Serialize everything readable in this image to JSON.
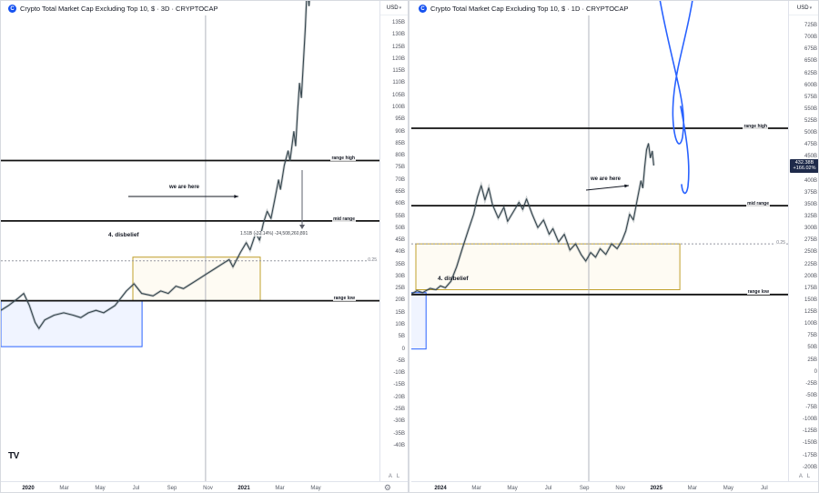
{
  "colors": {
    "background": "#ffffff",
    "border": "#e0e3eb",
    "text": "#131722",
    "muted": "#787b86",
    "level_line": "#111111",
    "fib_line": "#9598a1",
    "series": "#37474f",
    "box_accumulation": "#c0a02b",
    "box_capitulation": "#2962ff",
    "projection": "#2962ff",
    "badge_bg": "#1e2a4a",
    "badge_text": "#ffffff",
    "symbol_logo_bg": "#1652f0",
    "annotation": "#131722"
  },
  "footer": {
    "logo_text": "TV"
  },
  "panes": [
    {
      "title": "Crypto Total Market Cap Excluding Top 10, $ · 3D · CRYPTOCAP",
      "logo_letter": "C",
      "currency": "USD",
      "toggles": {
        "auto": "A",
        "log": "L"
      },
      "labels": {
        "range_high": "range high",
        "mid_range": "mid range",
        "range_low": "range low",
        "fib": "0.25",
        "disbelief": "4. disbelief",
        "we_are_here": "we are here",
        "measure": "1.51B (-32.14%) -24,508,260,891"
      },
      "price_ticks": [
        "135B",
        "130B",
        "125B",
        "120B",
        "115B",
        "110B",
        "105B",
        "100B",
        "95B",
        "90B",
        "85B",
        "80B",
        "75B",
        "70B",
        "65B",
        "60B",
        "55B",
        "50B",
        "45B",
        "40B",
        "35B",
        "30B",
        "25B",
        "20B",
        "15B",
        "10B",
        "5B",
        "0",
        "-5B",
        "-10B",
        "-15B",
        "-20B",
        "-25B",
        "-30B",
        "-35B",
        "-40B"
      ],
      "time_ticks": [
        "2020",
        "Mar",
        "May",
        "Jul",
        "Sep",
        "Nov",
        "2021",
        "Mar",
        "May"
      ]
    },
    {
      "title": "Crypto Total Market Cap Excluding Top 10, $ · 1D · CRYPTOCAP",
      "logo_letter": "C",
      "currency": "USD",
      "toggles": {
        "auto": "A",
        "log": "L"
      },
      "badge": {
        "price": "432.38B",
        "change": "+166.02%"
      },
      "labels": {
        "range_high": "range high",
        "mid_range": "mid range",
        "range_low": "range low",
        "fib": "0.25",
        "disbelief": "4. disbelief",
        "we_are_here": "we are here"
      },
      "price_ticks": [
        "725B",
        "700B",
        "675B",
        "650B",
        "625B",
        "600B",
        "575B",
        "550B",
        "525B",
        "500B",
        "475B",
        "450B",
        "425B",
        "400B",
        "375B",
        "350B",
        "325B",
        "300B",
        "275B",
        "250B",
        "225B",
        "200B",
        "175B",
        "150B",
        "125B",
        "100B",
        "75B",
        "50B",
        "25B",
        "0",
        "-25B",
        "-50B",
        "-75B",
        "-100B",
        "-125B",
        "-150B",
        "-175B",
        "-200B"
      ],
      "time_ticks": [
        "2024",
        "Mar",
        "May",
        "Jul",
        "Sep",
        "Nov",
        "2025",
        "Mar",
        "May",
        "Jul"
      ]
    }
  ],
  "chart_data": [
    {
      "type": "line",
      "note": "candlestick price chart approximated as line series",
      "title": "Crypto Total Market Cap Excluding Top 10, $ - 3D - CRYPTOCAP",
      "timeframe": "3D",
      "x_axis": {
        "start": "Dec 2019",
        "end": "Jun 2021",
        "ticks": [
          "2020",
          "Mar",
          "May",
          "Jul",
          "Sep",
          "Nov",
          "2021",
          "Mar",
          "May"
        ]
      },
      "y_axis": {
        "unit": "USD billions",
        "top": 135,
        "bottom": -40,
        "step": 5
      },
      "levels": {
        "range_high": 78,
        "mid_range": 53,
        "range_low": 20,
        "fib_0_25": 36.5
      },
      "boxes": {
        "accumulation": {
          "x0": 0.347,
          "x1": 0.682,
          "top": 38,
          "bottom": 20
        },
        "capitulation": {
          "x0": 0.0,
          "x1": 0.371,
          "top": 20,
          "bottom": 1
        }
      },
      "vline_x": 0.538,
      "series": {
        "x": [
          0.0,
          0.02,
          0.045,
          0.06,
          0.075,
          0.09,
          0.1,
          0.115,
          0.14,
          0.165,
          0.19,
          0.21,
          0.23,
          0.25,
          0.27,
          0.3,
          0.33,
          0.35,
          0.37,
          0.4,
          0.42,
          0.44,
          0.46,
          0.48,
          0.5,
          0.52,
          0.54,
          0.56,
          0.58,
          0.6,
          0.61,
          0.63,
          0.645,
          0.655,
          0.67,
          0.68,
          0.69,
          0.7,
          0.71,
          0.72,
          0.73,
          0.735,
          0.745,
          0.755,
          0.76,
          0.77,
          0.775,
          0.78,
          0.785,
          0.79,
          0.795,
          0.8,
          0.805,
          0.81,
          0.815
        ],
        "values_billions": [
          16,
          18,
          21,
          23,
          18,
          11,
          8.5,
          12,
          14,
          15,
          14,
          13,
          15,
          16,
          15,
          18,
          24,
          27,
          23,
          22,
          24,
          23,
          26,
          25,
          27,
          29,
          31,
          33,
          35,
          37,
          34,
          40,
          44,
          41,
          48,
          45,
          52,
          57,
          54,
          62,
          70,
          66,
          76,
          82,
          78,
          90,
          84,
          98,
          110,
          104,
          118,
          132,
          150,
          142,
          155
        ]
      }
    },
    {
      "type": "line",
      "note": "candlestick price chart approximated as line series, with hand-drawn blue projection",
      "title": "Crypto Total Market Cap Excluding Top 10, $ - 1D - CRYPTOCAP",
      "timeframe": "1D",
      "x_axis": {
        "start": "Dec 2023",
        "end": "Aug 2025",
        "ticks": [
          "2024",
          "Mar",
          "May",
          "Jul",
          "Sep",
          "Nov",
          "2025",
          "Mar",
          "May",
          "Jul"
        ]
      },
      "y_axis": {
        "unit": "USD billions",
        "top": 725,
        "bottom": -200,
        "step": 25
      },
      "levels": {
        "range_high": 510,
        "mid_range": 348,
        "range_low": 162,
        "fib_0_25": 268
      },
      "last_price_billions": 432.38,
      "change_pct": "+166.02%",
      "boxes": {
        "accumulation": {
          "x0": 0.012,
          "x1": 0.711,
          "top": 268,
          "bottom": 172
        },
        "capitulation": {
          "x0": -0.005,
          "x1": 0.039,
          "top": 166,
          "bottom": 48
        }
      },
      "vline_x": 0.47,
      "series": {
        "x": [
          0.0,
          0.015,
          0.03,
          0.05,
          0.065,
          0.077,
          0.09,
          0.105,
          0.12,
          0.135,
          0.15,
          0.165,
          0.175,
          0.185,
          0.195,
          0.205,
          0.215,
          0.23,
          0.245,
          0.255,
          0.27,
          0.285,
          0.295,
          0.305,
          0.32,
          0.335,
          0.35,
          0.365,
          0.375,
          0.39,
          0.405,
          0.42,
          0.435,
          0.45,
          0.462,
          0.475,
          0.488,
          0.5,
          0.515,
          0.53,
          0.545,
          0.558,
          0.568,
          0.578,
          0.588,
          0.598,
          0.608,
          0.613,
          0.618,
          0.623,
          0.628,
          0.633,
          0.638,
          0.642
        ],
        "values_billions": [
          163,
          170,
          166,
          175,
          172,
          180,
          176,
          190,
          220,
          258,
          295,
          330,
          365,
          390,
          360,
          385,
          350,
          322,
          345,
          315,
          335,
          355,
          340,
          362,
          330,
          302,
          318,
          288,
          300,
          272,
          288,
          255,
          268,
          245,
          232,
          250,
          240,
          258,
          246,
          268,
          258,
          275,
          295,
          330,
          318,
          360,
          400,
          385,
          430,
          465,
          478,
          448,
          462,
          432
        ]
      }
    }
  ]
}
